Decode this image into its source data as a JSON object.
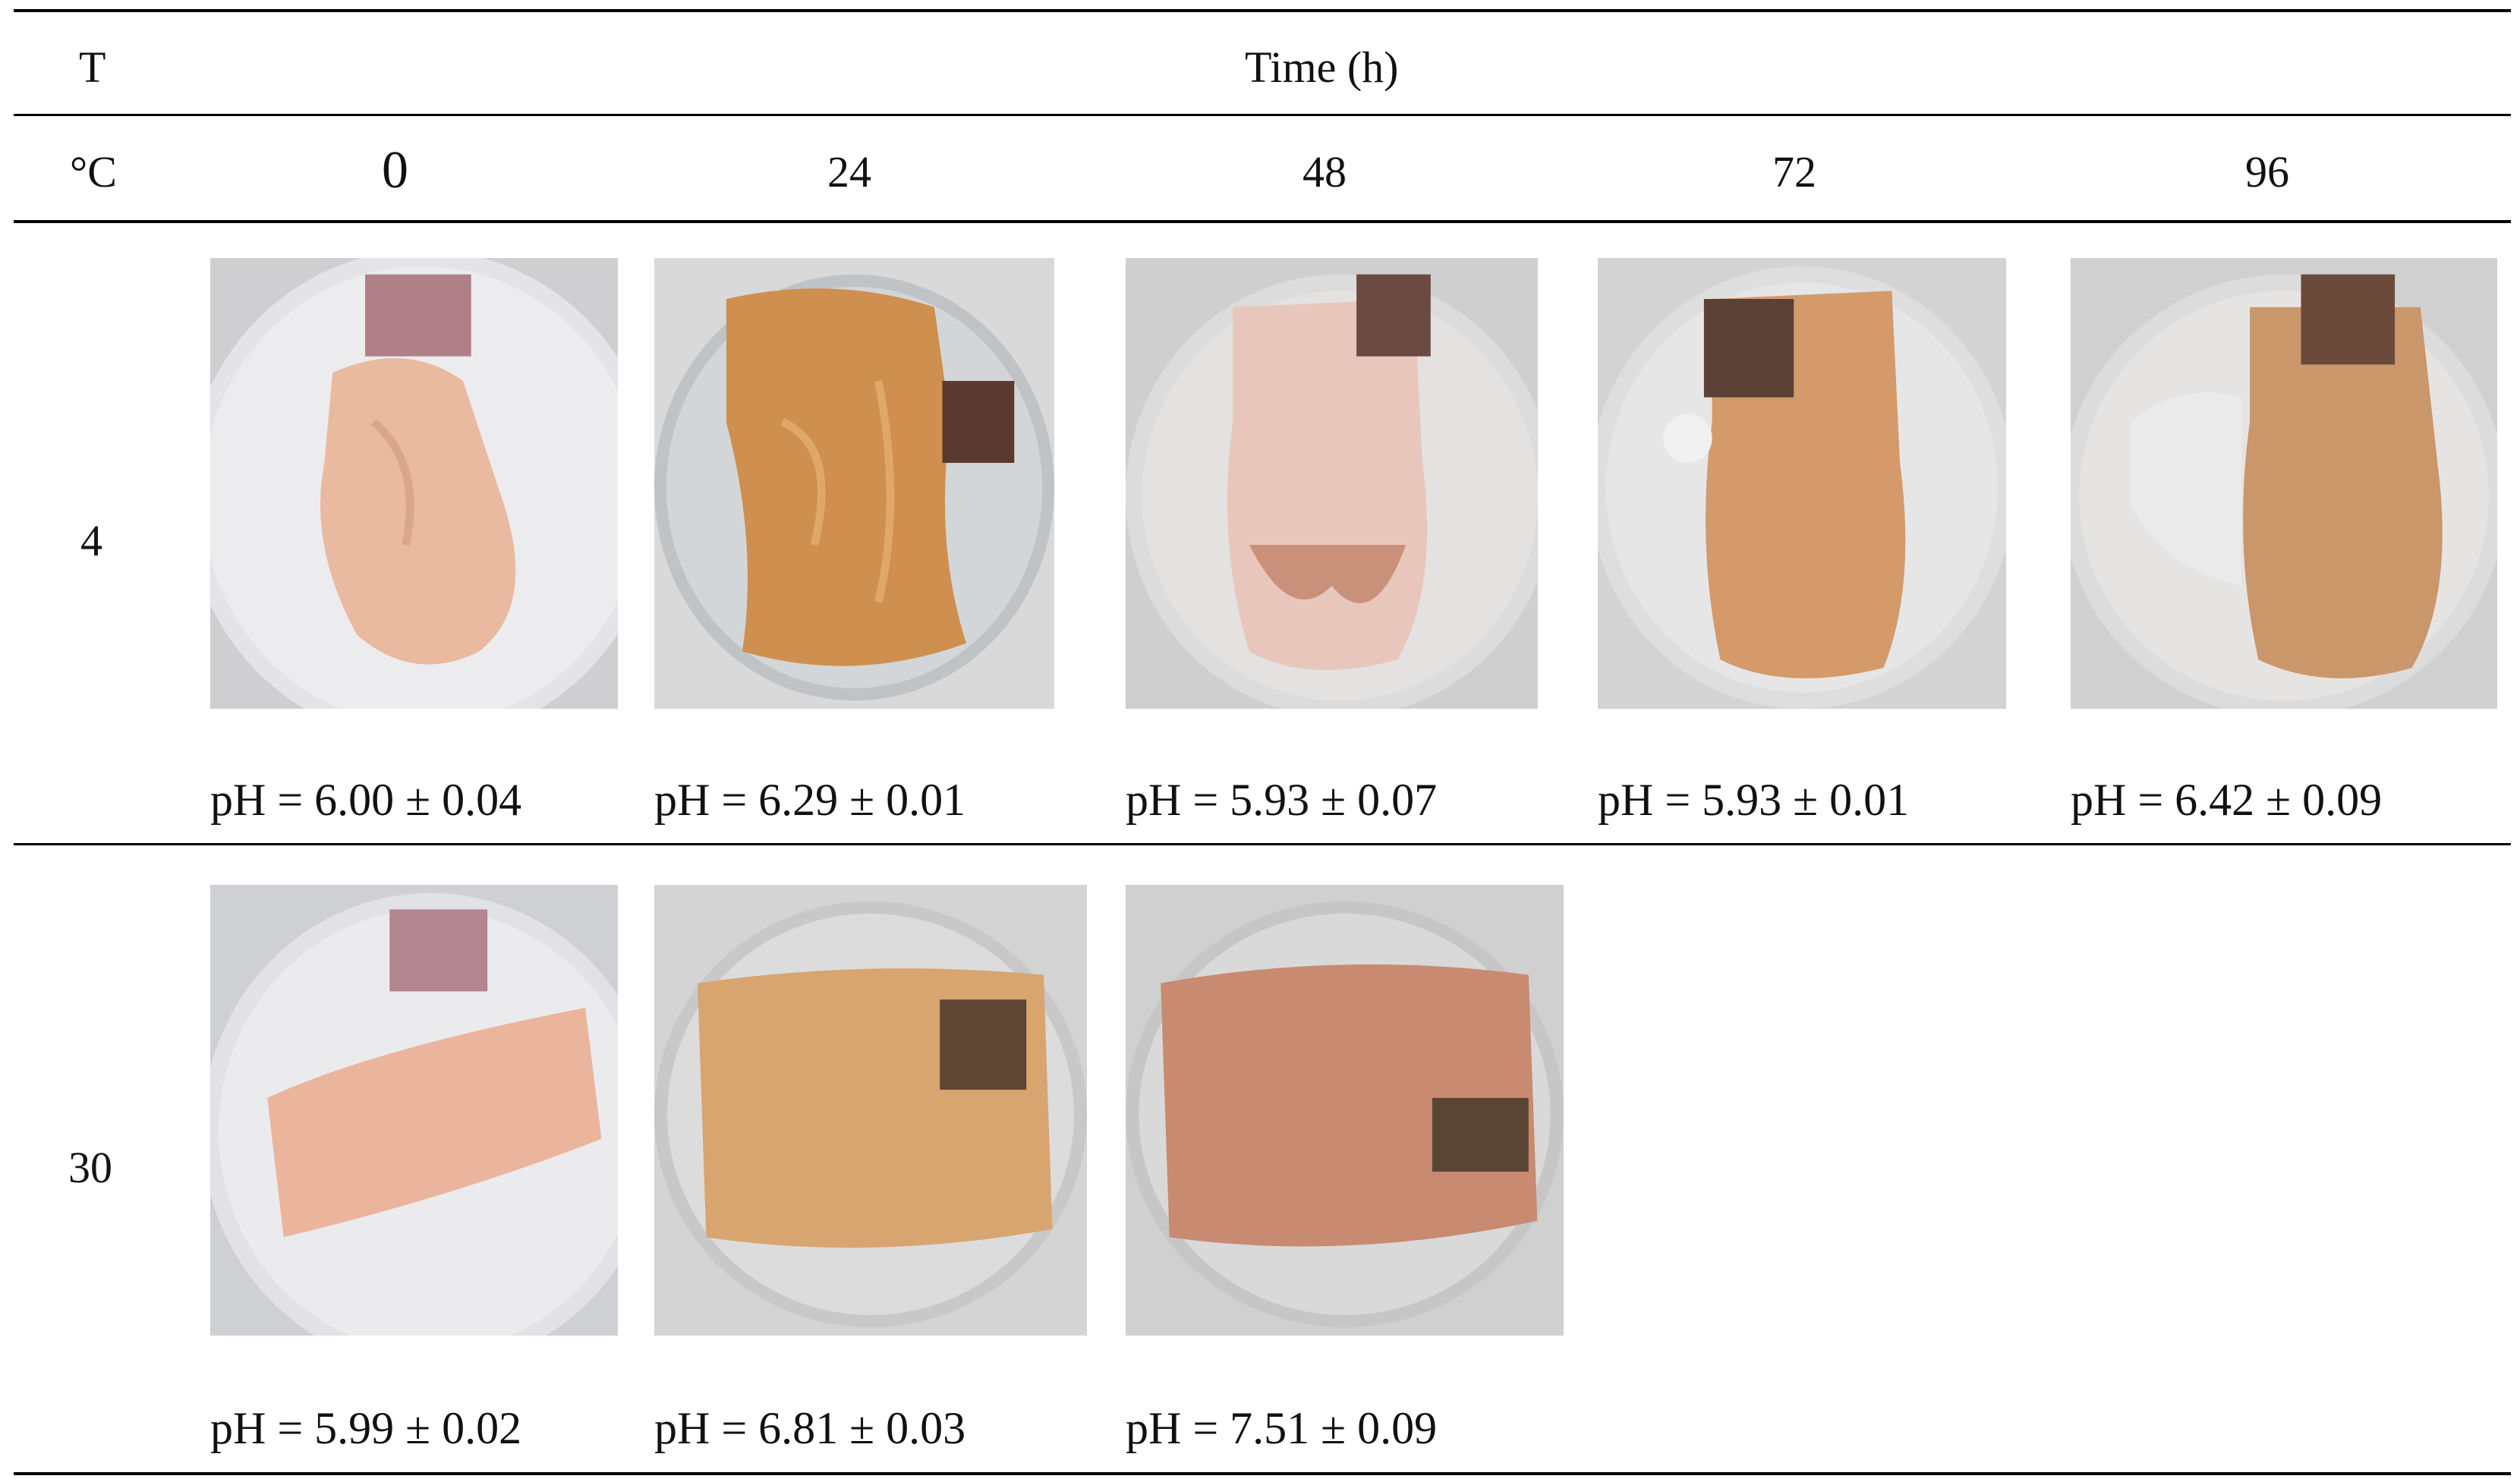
{
  "header": {
    "t_label": "T",
    "time_label": "Time (h)",
    "unit_label": "°C",
    "times": [
      "0",
      "24",
      "48",
      "72",
      "96"
    ]
  },
  "rows": [
    {
      "temp": "4",
      "cells": [
        {
          "time": "0",
          "ph": "pH = 6.00 ± 0.04",
          "meat": "pink",
          "tint": "#e9b9a0"
        },
        {
          "time": "24",
          "ph": "pH = 6.29 ± 0.01",
          "meat": "orange",
          "tint": "#cf8f4e"
        },
        {
          "time": "48",
          "ph": "pH = 5.93 ± 0.07",
          "meat": "pale",
          "tint": "#e8c6bc"
        },
        {
          "time": "72",
          "ph": "pH = 5.93 ± 0.01",
          "meat": "orange-speckled",
          "tint": "#d49a6a"
        },
        {
          "time": "96",
          "ph": "pH = 6.42 ± 0.09",
          "meat": "speckled",
          "tint": "#c99769"
        }
      ]
    },
    {
      "temp": "30",
      "cells": [
        {
          "time": "0",
          "ph": "pH = 5.99 ± 0.02",
          "meat": "pink",
          "tint": "#eab59c"
        },
        {
          "time": "24",
          "ph": "pH = 6.81 ± 0.03",
          "meat": "orange",
          "tint": "#d8a470"
        },
        {
          "time": "48",
          "ph": "pH = 7.51 ± 0.09",
          "meat": "red-brown",
          "tint": "#c88a70"
        }
      ]
    }
  ]
}
